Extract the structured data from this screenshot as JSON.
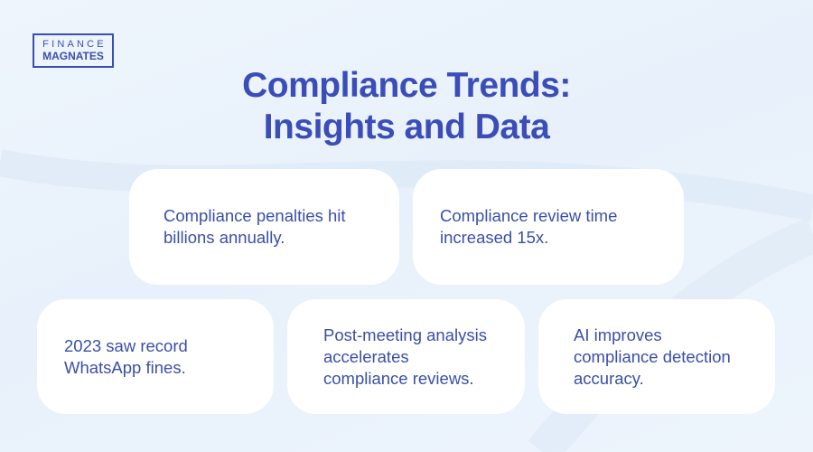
{
  "logo": {
    "line1": "FINANCE",
    "line2": "MAGNATES"
  },
  "title": {
    "line1": "Compliance Trends:",
    "line2": "Insights and Data"
  },
  "cards": [
    {
      "text": "Compliance penalties hit billions annually."
    },
    {
      "text": "Compliance review time increased 15x."
    },
    {
      "text": "2023 saw record WhatsApp fines."
    },
    {
      "text": "Post-meeting analysis accelerates compliance reviews."
    },
    {
      "text": "AI improves compliance detection accuracy."
    }
  ],
  "colors": {
    "accent": "#3a4db8",
    "card_text": "#3a4fa8",
    "background": "#eaf3fc"
  }
}
